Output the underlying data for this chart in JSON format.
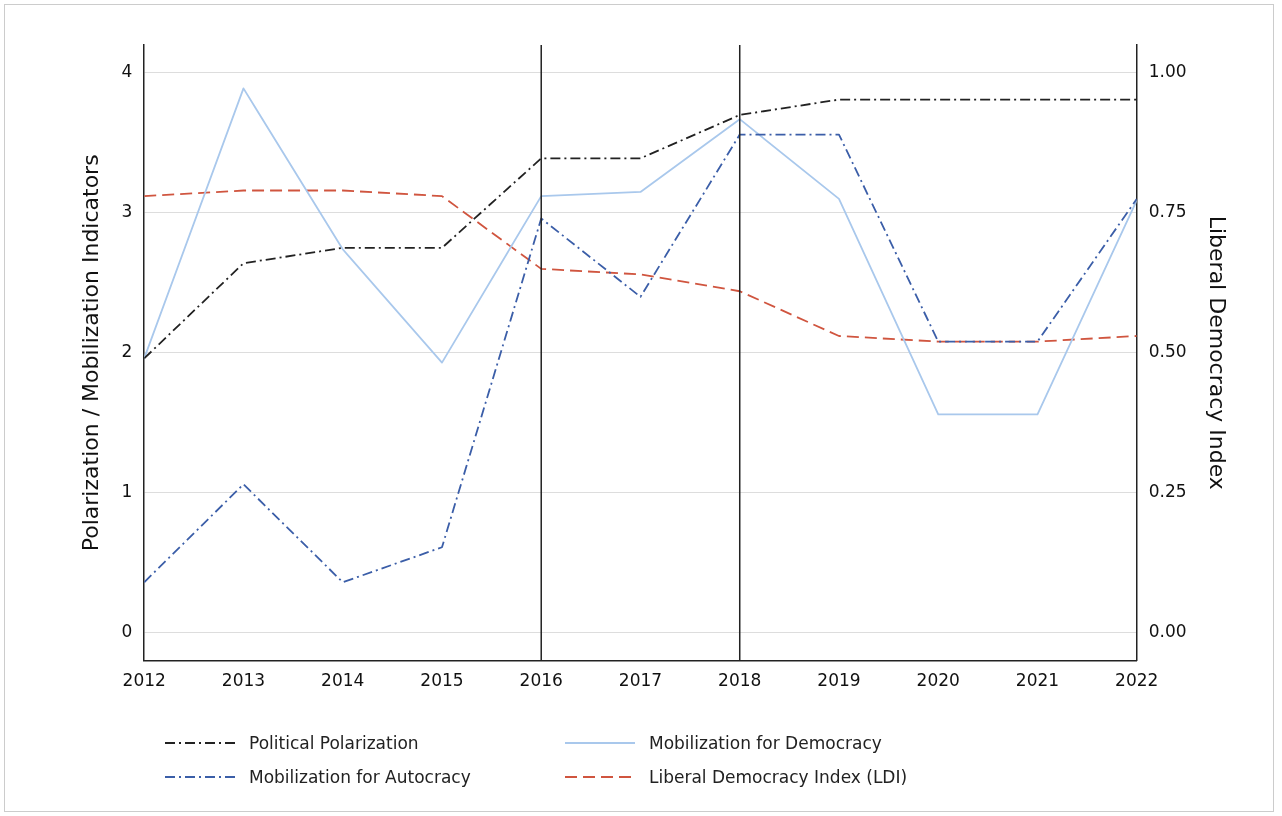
{
  "chart_data": {
    "type": "line",
    "ylabel": "Polarization / Mobilization Indicators",
    "y2label": "Liberal Democracy Index",
    "x": [
      2012,
      2013,
      2014,
      2015,
      2016,
      2017,
      2018,
      2019,
      2020,
      2021,
      2022
    ],
    "xlim": [
      2012,
      2022
    ],
    "xticks": [
      2012,
      2013,
      2014,
      2015,
      2016,
      2017,
      2018,
      2019,
      2020,
      2021,
      2022
    ],
    "ylim": [
      -0.2,
      4.2
    ],
    "yticks": [
      0,
      1,
      2,
      3,
      4
    ],
    "y2lim": [
      -0.05,
      1.05
    ],
    "y2ticks": [
      {
        "value": 0,
        "label": "0.00"
      },
      {
        "value": 0.25,
        "label": "0.25"
      },
      {
        "value": 0.5,
        "label": "0.50"
      },
      {
        "value": 0.75,
        "label": "0.75"
      },
      {
        "value": 1,
        "label": "1.00"
      }
    ],
    "grid": "y",
    "legend": "bottom",
    "marker": "none",
    "ref_lines": [
      {
        "axis": "x",
        "value": 2016,
        "color": "#222222"
      },
      {
        "axis": "x",
        "value": 2018,
        "color": "#222222"
      }
    ],
    "series": [
      {
        "name": "Political Polarization",
        "color": "#222222",
        "line_style": "dashdot",
        "values": [
          1.96,
          2.64,
          2.75,
          2.75,
          3.39,
          3.39,
          3.7,
          3.81,
          3.81,
          3.81,
          3.81
        ]
      },
      {
        "name": "Mobilization for Autocracy",
        "color": "#3b5ea8",
        "line_style": "dashdot",
        "values": [
          0.36,
          1.06,
          0.36,
          0.61,
          2.96,
          2.4,
          3.56,
          3.56,
          2.08,
          2.08,
          3.1
        ]
      },
      {
        "name": "Mobilization for Democracy",
        "color": "#a9c8ec",
        "line_style": "solid",
        "values": [
          1.96,
          3.89,
          2.74,
          1.93,
          3.12,
          3.15,
          3.67,
          3.1,
          1.56,
          1.56,
          3.09
        ]
      },
      {
        "name": "Liberal Democracy Index (LDI)",
        "color": "#d0553f",
        "line_style": "dashed",
        "axis": "y2",
        "values": [
          0.78,
          0.79,
          0.79,
          0.78,
          0.65,
          0.64,
          0.61,
          0.53,
          0.52,
          0.52,
          0.53
        ]
      }
    ]
  }
}
